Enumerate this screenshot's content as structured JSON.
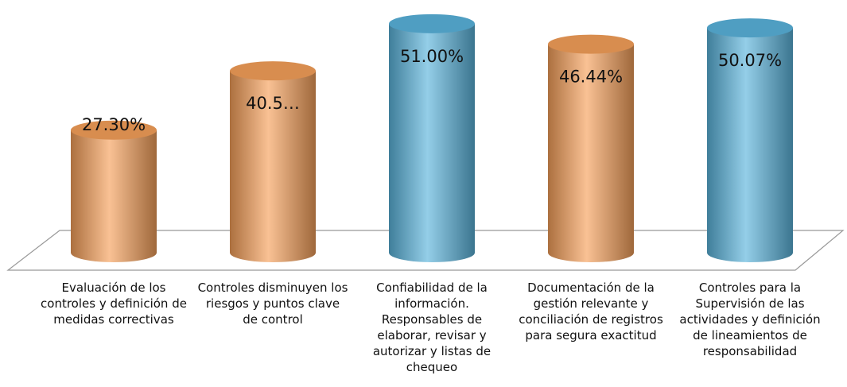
{
  "chart_data": {
    "type": "cylinder",
    "categories": [
      "Evaluación de los controles y definición de medidas correctivas",
      "Controles disminuyen los riesgos y puntos clave de control",
      "Confiabilidad de la información. Responsables de elaborar, revisar y autorizar y listas de chequeo",
      "Documentación de la gestión relevante y conciliación de registros para segura exactitud",
      "Controles para la Supervisión de las actividades y definición de lineamientos de responsabilidad"
    ],
    "values": [
      27.3,
      40.5,
      51.0,
      46.44,
      50.07
    ],
    "value_labels": [
      "27.30%",
      "40.5…",
      "51.00%",
      "46.44%",
      "50.07%"
    ],
    "colors": [
      "#f5a05a",
      "#f5a05a",
      "#5ab4dc",
      "#f5a05a",
      "#5ab4dc"
    ]
  }
}
